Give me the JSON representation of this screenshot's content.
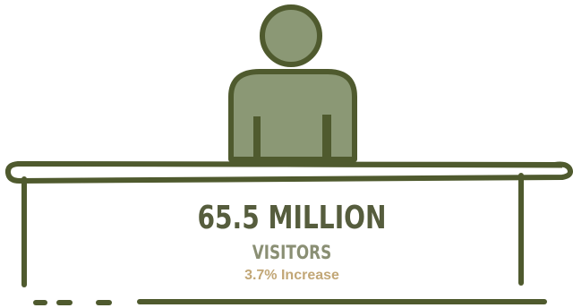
{
  "stat": {
    "value": "65.5 MILLION",
    "label": "VISITORS",
    "change": "3.7% Increase"
  },
  "icons": {
    "person": "person-icon",
    "desk": "desk-icon"
  },
  "colors": {
    "outline": "#4f5a2e",
    "fill": "#8b9875",
    "value_text": "#565d3d",
    "label_text": "#8a8f74",
    "change_text": "#c2a777"
  }
}
